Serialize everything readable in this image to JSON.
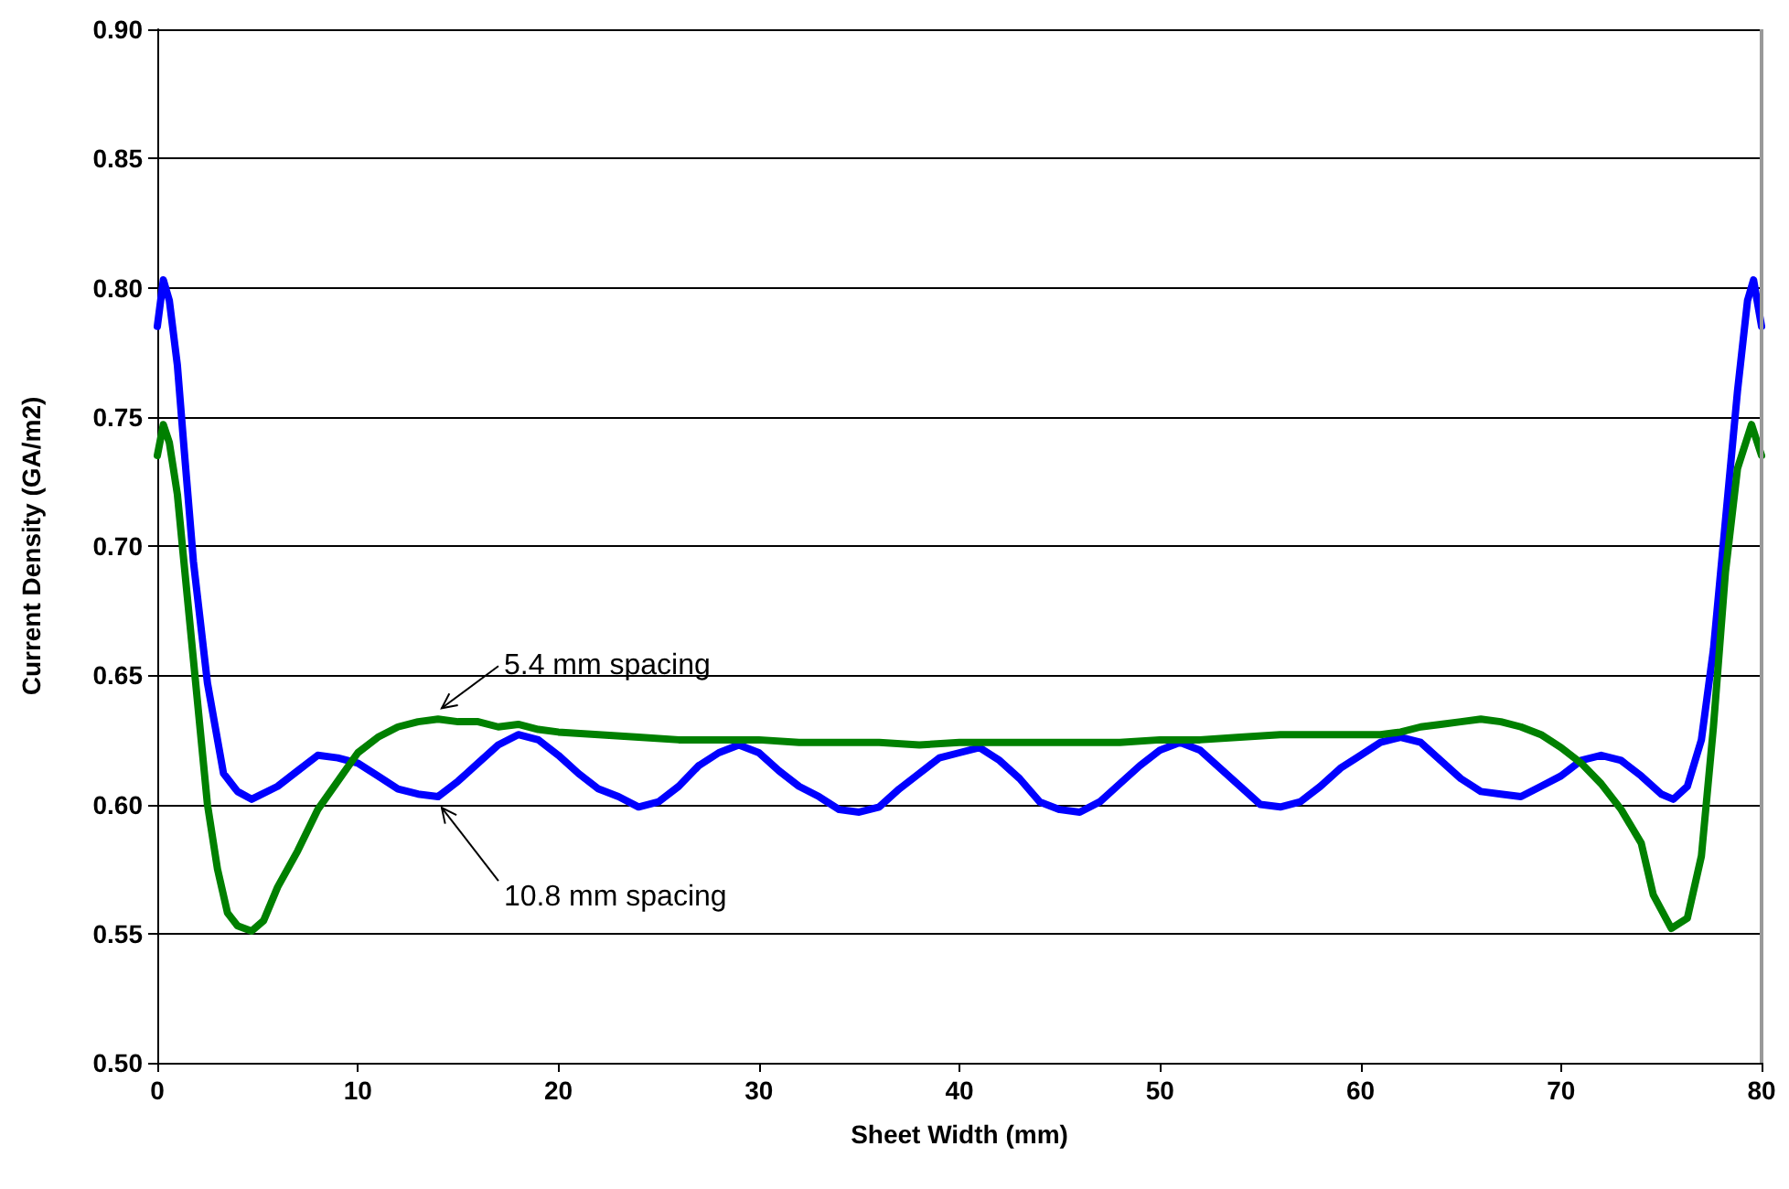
{
  "chart_data": {
    "type": "line",
    "xlabel": "Sheet Width (mm)",
    "ylabel": "Current Density (GA/m2)",
    "xlim": [
      0,
      80
    ],
    "xticks": [
      0,
      10,
      20,
      30,
      40,
      50,
      60,
      70,
      80
    ],
    "ylim": [
      0.5,
      0.9
    ],
    "yticks": [
      {
        "value": 0.5,
        "label": "0.50"
      },
      {
        "value": 0.55,
        "label": "0.55"
      },
      {
        "value": 0.6,
        "label": "0.60"
      },
      {
        "value": 0.65,
        "label": "0.65"
      },
      {
        "value": 0.7,
        "label": "0.70"
      },
      {
        "value": 0.75,
        "label": "0.75"
      },
      {
        "value": 0.8,
        "label": "0.80"
      },
      {
        "value": 0.85,
        "label": "0.85"
      },
      {
        "value": 0.9,
        "label": "0.90"
      }
    ],
    "grid": "y",
    "marker": "none",
    "line_style": "solid",
    "series": [
      {
        "color": "#0000ff",
        "x": [
          0,
          0.3,
          0.6,
          1,
          1.3,
          1.8,
          2.5,
          3.3,
          4,
          4.7,
          6,
          7,
          8,
          9,
          10,
          11,
          12,
          13,
          14,
          15,
          16,
          17,
          18,
          19,
          20,
          21,
          22,
          23,
          24,
          25,
          26,
          27,
          28,
          29,
          30,
          31,
          32,
          33,
          34,
          35,
          36,
          37,
          38,
          39,
          40,
          41,
          42,
          43,
          44,
          45,
          46,
          47,
          48,
          49,
          50,
          51,
          52,
          53,
          54,
          55,
          56,
          57,
          58,
          59,
          60,
          61,
          62,
          63,
          64,
          65,
          66,
          67,
          68,
          69,
          70,
          71,
          72,
          73,
          74,
          75,
          75.6,
          76.3,
          77,
          77.6,
          78.2,
          78.8,
          79.3,
          79.6,
          80
        ],
        "values": [
          0.785,
          0.803,
          0.795,
          0.77,
          0.741,
          0.694,
          0.647,
          0.612,
          0.605,
          0.602,
          0.607,
          0.613,
          0.619,
          0.618,
          0.616,
          0.611,
          0.606,
          0.604,
          0.603,
          0.609,
          0.616,
          0.623,
          0.627,
          0.625,
          0.619,
          0.612,
          0.606,
          0.603,
          0.599,
          0.601,
          0.607,
          0.615,
          0.62,
          0.623,
          0.62,
          0.613,
          0.607,
          0.603,
          0.598,
          0.597,
          0.599,
          0.606,
          0.612,
          0.618,
          0.62,
          0.622,
          0.617,
          0.61,
          0.601,
          0.598,
          0.597,
          0.601,
          0.608,
          0.615,
          0.621,
          0.624,
          0.621,
          0.614,
          0.607,
          0.6,
          0.599,
          0.601,
          0.607,
          0.614,
          0.619,
          0.624,
          0.626,
          0.624,
          0.617,
          0.61,
          0.605,
          0.604,
          0.603,
          0.607,
          0.611,
          0.617,
          0.619,
          0.617,
          0.611,
          0.604,
          0.602,
          0.607,
          0.625,
          0.66,
          0.71,
          0.76,
          0.795,
          0.803,
          0.785
        ]
      },
      {
        "color": "#008000",
        "x": [
          0,
          0.3,
          0.6,
          1,
          1.5,
          2,
          2.5,
          3,
          3.5,
          4,
          4.7,
          5.3,
          6,
          7,
          8,
          9,
          10,
          11,
          12,
          13,
          14,
          15,
          16,
          17,
          18,
          19,
          20,
          22,
          24,
          26,
          28,
          30,
          32,
          34,
          36,
          38,
          40,
          42,
          44,
          46,
          48,
          50,
          52,
          54,
          56,
          58,
          60,
          61,
          62,
          63,
          64,
          65,
          66,
          67,
          68,
          69,
          70,
          71,
          72,
          73,
          74,
          74.6,
          75.5,
          76.3,
          77,
          77.6,
          78.2,
          78.8,
          79.5,
          80
        ],
        "values": [
          0.735,
          0.747,
          0.74,
          0.72,
          0.68,
          0.64,
          0.6,
          0.575,
          0.558,
          0.553,
          0.551,
          0.555,
          0.568,
          0.582,
          0.598,
          0.609,
          0.62,
          0.626,
          0.63,
          0.632,
          0.633,
          0.632,
          0.632,
          0.63,
          0.631,
          0.629,
          0.628,
          0.627,
          0.626,
          0.625,
          0.625,
          0.625,
          0.624,
          0.624,
          0.624,
          0.623,
          0.624,
          0.624,
          0.624,
          0.624,
          0.624,
          0.625,
          0.625,
          0.626,
          0.627,
          0.627,
          0.627,
          0.627,
          0.628,
          0.63,
          0.631,
          0.632,
          0.633,
          0.632,
          0.63,
          0.627,
          0.622,
          0.616,
          0.608,
          0.598,
          0.585,
          0.565,
          0.552,
          0.556,
          0.58,
          0.63,
          0.69,
          0.73,
          0.747,
          0.735
        ]
      }
    ],
    "annotations": [
      {
        "text": "5.4 mm spacing",
        "x": 14,
        "y": 0.633
      },
      {
        "text": "10.8 mm spacing",
        "x": 14,
        "y": 0.603
      }
    ]
  }
}
